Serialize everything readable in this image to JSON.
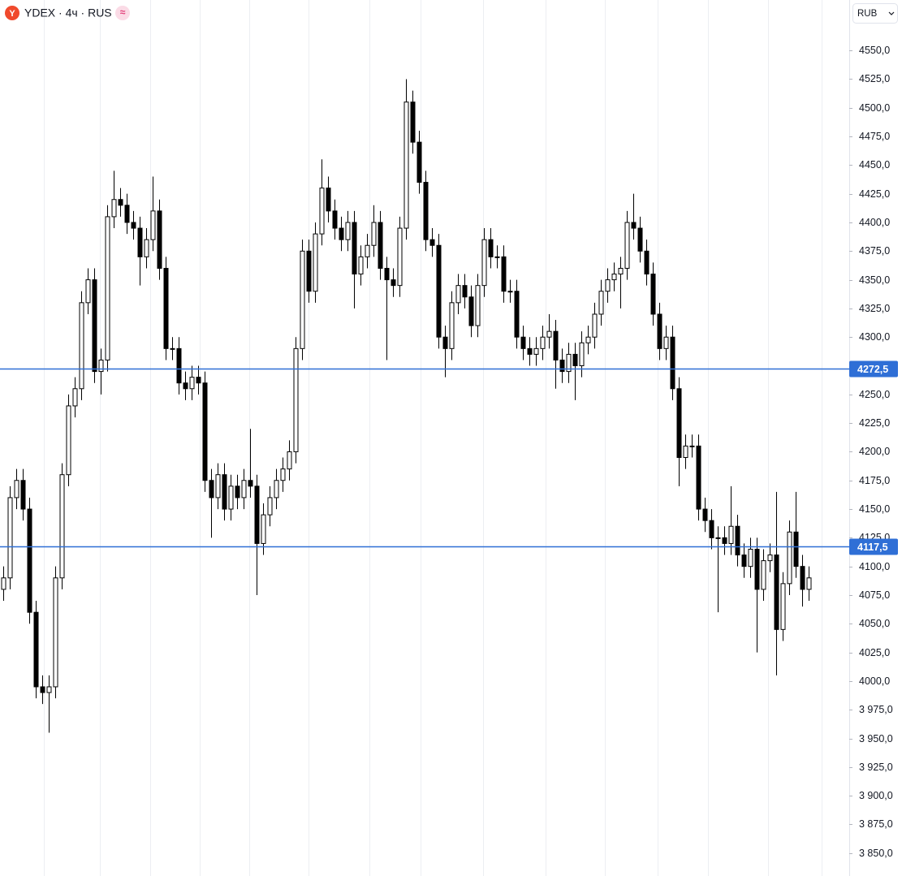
{
  "chart_data": {
    "type": "candlestick",
    "title": "YDEX · 4ч · RUS",
    "logo": "Y",
    "badge": "≈",
    "currency": "RUB",
    "up_color": "#ffffff",
    "down_color": "#000000",
    "line_color": "#2f6fd6",
    "grid": true,
    "ylim": [
      3830,
      4594
    ],
    "yticks": [
      {
        "value": 4550,
        "label": "4550,0"
      },
      {
        "value": 4525,
        "label": "4525,0"
      },
      {
        "value": 4500,
        "label": "4500,0"
      },
      {
        "value": 4475,
        "label": "4475,0"
      },
      {
        "value": 4450,
        "label": "4450,0"
      },
      {
        "value": 4425,
        "label": "4425,0"
      },
      {
        "value": 4400,
        "label": "4400,0"
      },
      {
        "value": 4375,
        "label": "4375,0"
      },
      {
        "value": 4350,
        "label": "4350,0"
      },
      {
        "value": 4325,
        "label": "4325,0"
      },
      {
        "value": 4300,
        "label": "4300,0"
      },
      {
        "value": 4250,
        "label": "4250,0"
      },
      {
        "value": 4225,
        "label": "4225,0"
      },
      {
        "value": 4200,
        "label": "4200,0"
      },
      {
        "value": 4175,
        "label": "4175,0"
      },
      {
        "value": 4150,
        "label": "4150,0"
      },
      {
        "value": 4125,
        "label": "4125,0"
      },
      {
        "value": 4100,
        "label": "4100,0"
      },
      {
        "value": 4075,
        "label": "4075,0"
      },
      {
        "value": 4050,
        "label": "4050,0"
      },
      {
        "value": 4025,
        "label": "4025,0"
      },
      {
        "value": 4000,
        "label": "4000,0"
      },
      {
        "value": 3975,
        "label": "3 975,0"
      },
      {
        "value": 3950,
        "label": "3 950,0"
      },
      {
        "value": 3925,
        "label": "3 925,0"
      },
      {
        "value": 3900,
        "label": "3 900,0"
      },
      {
        "value": 3875,
        "label": "3 875,0"
      },
      {
        "value": 3850,
        "label": "3 850,0"
      }
    ],
    "price_lines": [
      {
        "value": 4272.5,
        "label": "4272,5"
      },
      {
        "value": 4117.5,
        "label": "4117,5"
      }
    ],
    "open": [
      4080,
      4090,
      4160,
      4175,
      4150,
      4060,
      3995,
      3990,
      3995,
      4090,
      4180,
      4240,
      4255,
      4330,
      4350,
      4270,
      4280,
      4405,
      4420,
      4415,
      4400,
      4395,
      4370,
      4385,
      4410,
      4360,
      4290,
      4290,
      4260,
      4255,
      4265,
      4260,
      4175,
      4160,
      4180,
      4150,
      4170,
      4160,
      4175,
      4170,
      4120,
      4145,
      4160,
      4175,
      4185,
      4200,
      4290,
      4375,
      4340,
      4390,
      4430,
      4410,
      4395,
      4385,
      4400,
      4355,
      4370,
      4380,
      4400,
      4360,
      4350,
      4345,
      4395,
      4505,
      4470,
      4435,
      4385,
      4380,
      4300,
      4290,
      4330,
      4345,
      4335,
      4310,
      4345,
      4385,
      4370,
      4370,
      4340,
      4340,
      4300,
      4290,
      4285,
      4290,
      4300,
      4305,
      4280,
      4270,
      4285,
      4275,
      4295,
      4300,
      4320,
      4340,
      4350,
      4355,
      4360,
      4400,
      4395,
      4375,
      4355,
      4320,
      4290,
      4300,
      4255,
      4195,
      4205,
      4205,
      4150,
      4140,
      4125,
      4125,
      4120,
      4135,
      4110,
      4100,
      4115,
      4080,
      4105,
      4110,
      4045,
      4085,
      4130,
      4100,
      4080
    ],
    "high": [
      4100,
      4170,
      4185,
      4185,
      4160,
      4070,
      4005,
      4005,
      4100,
      4190,
      4250,
      4265,
      4340,
      4360,
      4360,
      4290,
      4415,
      4445,
      4430,
      4425,
      4410,
      4405,
      4395,
      4440,
      4420,
      4370,
      4300,
      4300,
      4270,
      4275,
      4275,
      4270,
      4185,
      4190,
      4190,
      4180,
      4180,
      4185,
      4220,
      4180,
      4155,
      4170,
      4185,
      4195,
      4210,
      4300,
      4385,
      4385,
      4400,
      4455,
      4440,
      4420,
      4405,
      4410,
      4410,
      4380,
      4390,
      4415,
      4410,
      4370,
      4360,
      4405,
      4525,
      4515,
      4480,
      4445,
      4395,
      4390,
      4310,
      4340,
      4355,
      4355,
      4345,
      4355,
      4395,
      4395,
      4380,
      4380,
      4350,
      4350,
      4310,
      4300,
      4300,
      4310,
      4320,
      4315,
      4290,
      4295,
      4295,
      4305,
      4310,
      4330,
      4350,
      4360,
      4365,
      4370,
      4410,
      4425,
      4405,
      4385,
      4365,
      4330,
      4310,
      4310,
      4265,
      4215,
      4215,
      4215,
      4160,
      4150,
      4135,
      4135,
      4170,
      4145,
      4120,
      4125,
      4125,
      4115,
      4120,
      4165,
      4095,
      4140,
      4165,
      4110,
      4100
    ],
    "low": [
      4070,
      4080,
      4150,
      4140,
      4050,
      3985,
      3980,
      3955,
      3985,
      4080,
      4170,
      4230,
      4245,
      4320,
      4260,
      4250,
      4270,
      4395,
      4405,
      4390,
      4385,
      4345,
      4360,
      4375,
      4350,
      4280,
      4280,
      4250,
      4245,
      4245,
      4250,
      4165,
      4125,
      4150,
      4140,
      4140,
      4150,
      4150,
      4160,
      4075,
      4110,
      4135,
      4150,
      4165,
      4175,
      4190,
      4280,
      4330,
      4330,
      4380,
      4400,
      4385,
      4375,
      4375,
      4325,
      4345,
      4360,
      4370,
      4350,
      4280,
      4335,
      4335,
      4385,
      4460,
      4425,
      4375,
      4370,
      4290,
      4265,
      4280,
      4320,
      4325,
      4300,
      4300,
      4335,
      4360,
      4360,
      4330,
      4330,
      4290,
      4280,
      4275,
      4275,
      4280,
      4290,
      4255,
      4260,
      4260,
      4245,
      4265,
      4285,
      4290,
      4310,
      4330,
      4340,
      4325,
      4350,
      4385,
      4365,
      4345,
      4310,
      4280,
      4280,
      4245,
      4170,
      4185,
      4195,
      4140,
      4130,
      4115,
      4060,
      4110,
      4110,
      4100,
      4090,
      4090,
      4025,
      4070,
      4095,
      4005,
      4035,
      4075,
      4090,
      4065,
      4070
    ],
    "close": [
      4090,
      4160,
      4175,
      4150,
      4060,
      3995,
      3990,
      3995,
      4090,
      4180,
      4240,
      4255,
      4330,
      4350,
      4270,
      4280,
      4405,
      4420,
      4415,
      4400,
      4395,
      4370,
      4385,
      4410,
      4360,
      4290,
      4290,
      4260,
      4255,
      4265,
      4260,
      4175,
      4160,
      4180,
      4150,
      4170,
      4160,
      4175,
      4170,
      4120,
      4145,
      4160,
      4175,
      4185,
      4200,
      4290,
      4375,
      4340,
      4390,
      4430,
      4410,
      4395,
      4385,
      4400,
      4355,
      4370,
      4380,
      4400,
      4360,
      4350,
      4345,
      4395,
      4505,
      4470,
      4435,
      4385,
      4380,
      4300,
      4290,
      4330,
      4345,
      4335,
      4310,
      4345,
      4385,
      4370,
      4370,
      4340,
      4340,
      4300,
      4290,
      4285,
      4290,
      4300,
      4305,
      4280,
      4270,
      4285,
      4275,
      4295,
      4300,
      4320,
      4340,
      4350,
      4355,
      4360,
      4400,
      4395,
      4375,
      4355,
      4320,
      4290,
      4300,
      4255,
      4195,
      4205,
      4205,
      4150,
      4140,
      4125,
      4125,
      4120,
      4135,
      4110,
      4100,
      4115,
      4080,
      4105,
      4110,
      4045,
      4085,
      4130,
      4100,
      4080,
      4090
    ]
  }
}
